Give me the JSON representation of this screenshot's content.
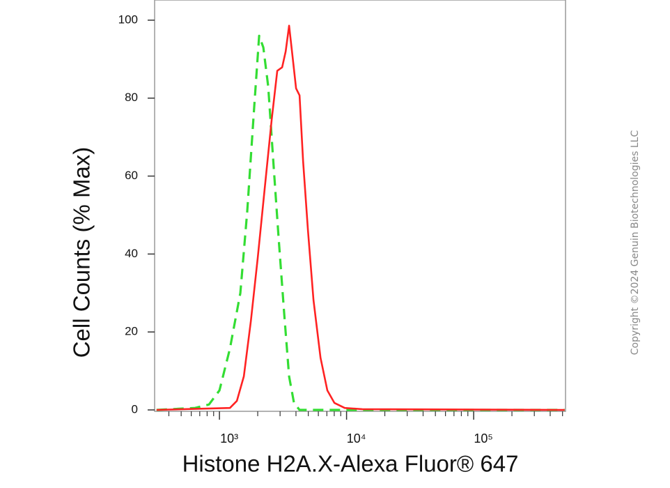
{
  "chart_data": {
    "type": "line",
    "xlabel": "Histone H2A.X-Alexa Fluor® 647",
    "ylabel": "Cell Counts (% Max)",
    "watermark": "Copyright ©2024 Genuin Biotechnologies LLC",
    "xscale": "log",
    "xlim": [
      309,
      528000
    ],
    "ylim": [
      0,
      105
    ],
    "xticks": [
      {
        "value": 1000,
        "label": "10³"
      },
      {
        "value": 10000,
        "label": "10⁴"
      },
      {
        "value": 100000,
        "label": "10⁵"
      }
    ],
    "xminorticks": [
      400,
      500,
      600,
      700,
      800,
      900,
      2000,
      3000,
      4000,
      5000,
      6000,
      7000,
      8000,
      9000,
      20000,
      30000,
      40000,
      50000,
      60000,
      70000,
      80000,
      90000,
      200000,
      300000,
      400000,
      500000
    ],
    "yticks": [
      0,
      20,
      40,
      60,
      80,
      100
    ],
    "grid": false,
    "series": [
      {
        "color": "#33dd33",
        "dashed": true,
        "x": [
          320,
          643,
          828,
          1000,
          1208,
          1460,
          1655,
          1879,
          2052,
          2213,
          2420,
          2675,
          2922,
          3234,
          3531,
          3857,
          4266,
          520000
        ],
        "values": [
          0,
          0.5,
          1.4,
          5,
          15.7,
          30,
          51,
          78,
          96,
          93,
          83,
          62,
          44,
          24.6,
          8.6,
          1.8,
          0,
          0
        ]
      },
      {
        "color": "#ff2222",
        "dashed": false,
        "x": [
          320,
          1208,
          1371,
          1556,
          1766,
          2000,
          2269,
          2575,
          2850,
          3113,
          3318,
          3531,
          3760,
          4006,
          4266,
          4550,
          4969,
          5495,
          6237,
          7063,
          8017,
          9683,
          13275,
          520000
        ],
        "values": [
          0,
          0.5,
          2.3,
          8.6,
          22.8,
          38.9,
          56.7,
          74.5,
          87,
          87.9,
          92,
          98.6,
          90.6,
          82.5,
          80.7,
          63.8,
          46,
          28.2,
          13.4,
          5,
          1.8,
          0.5,
          0.2,
          0
        ]
      }
    ]
  }
}
